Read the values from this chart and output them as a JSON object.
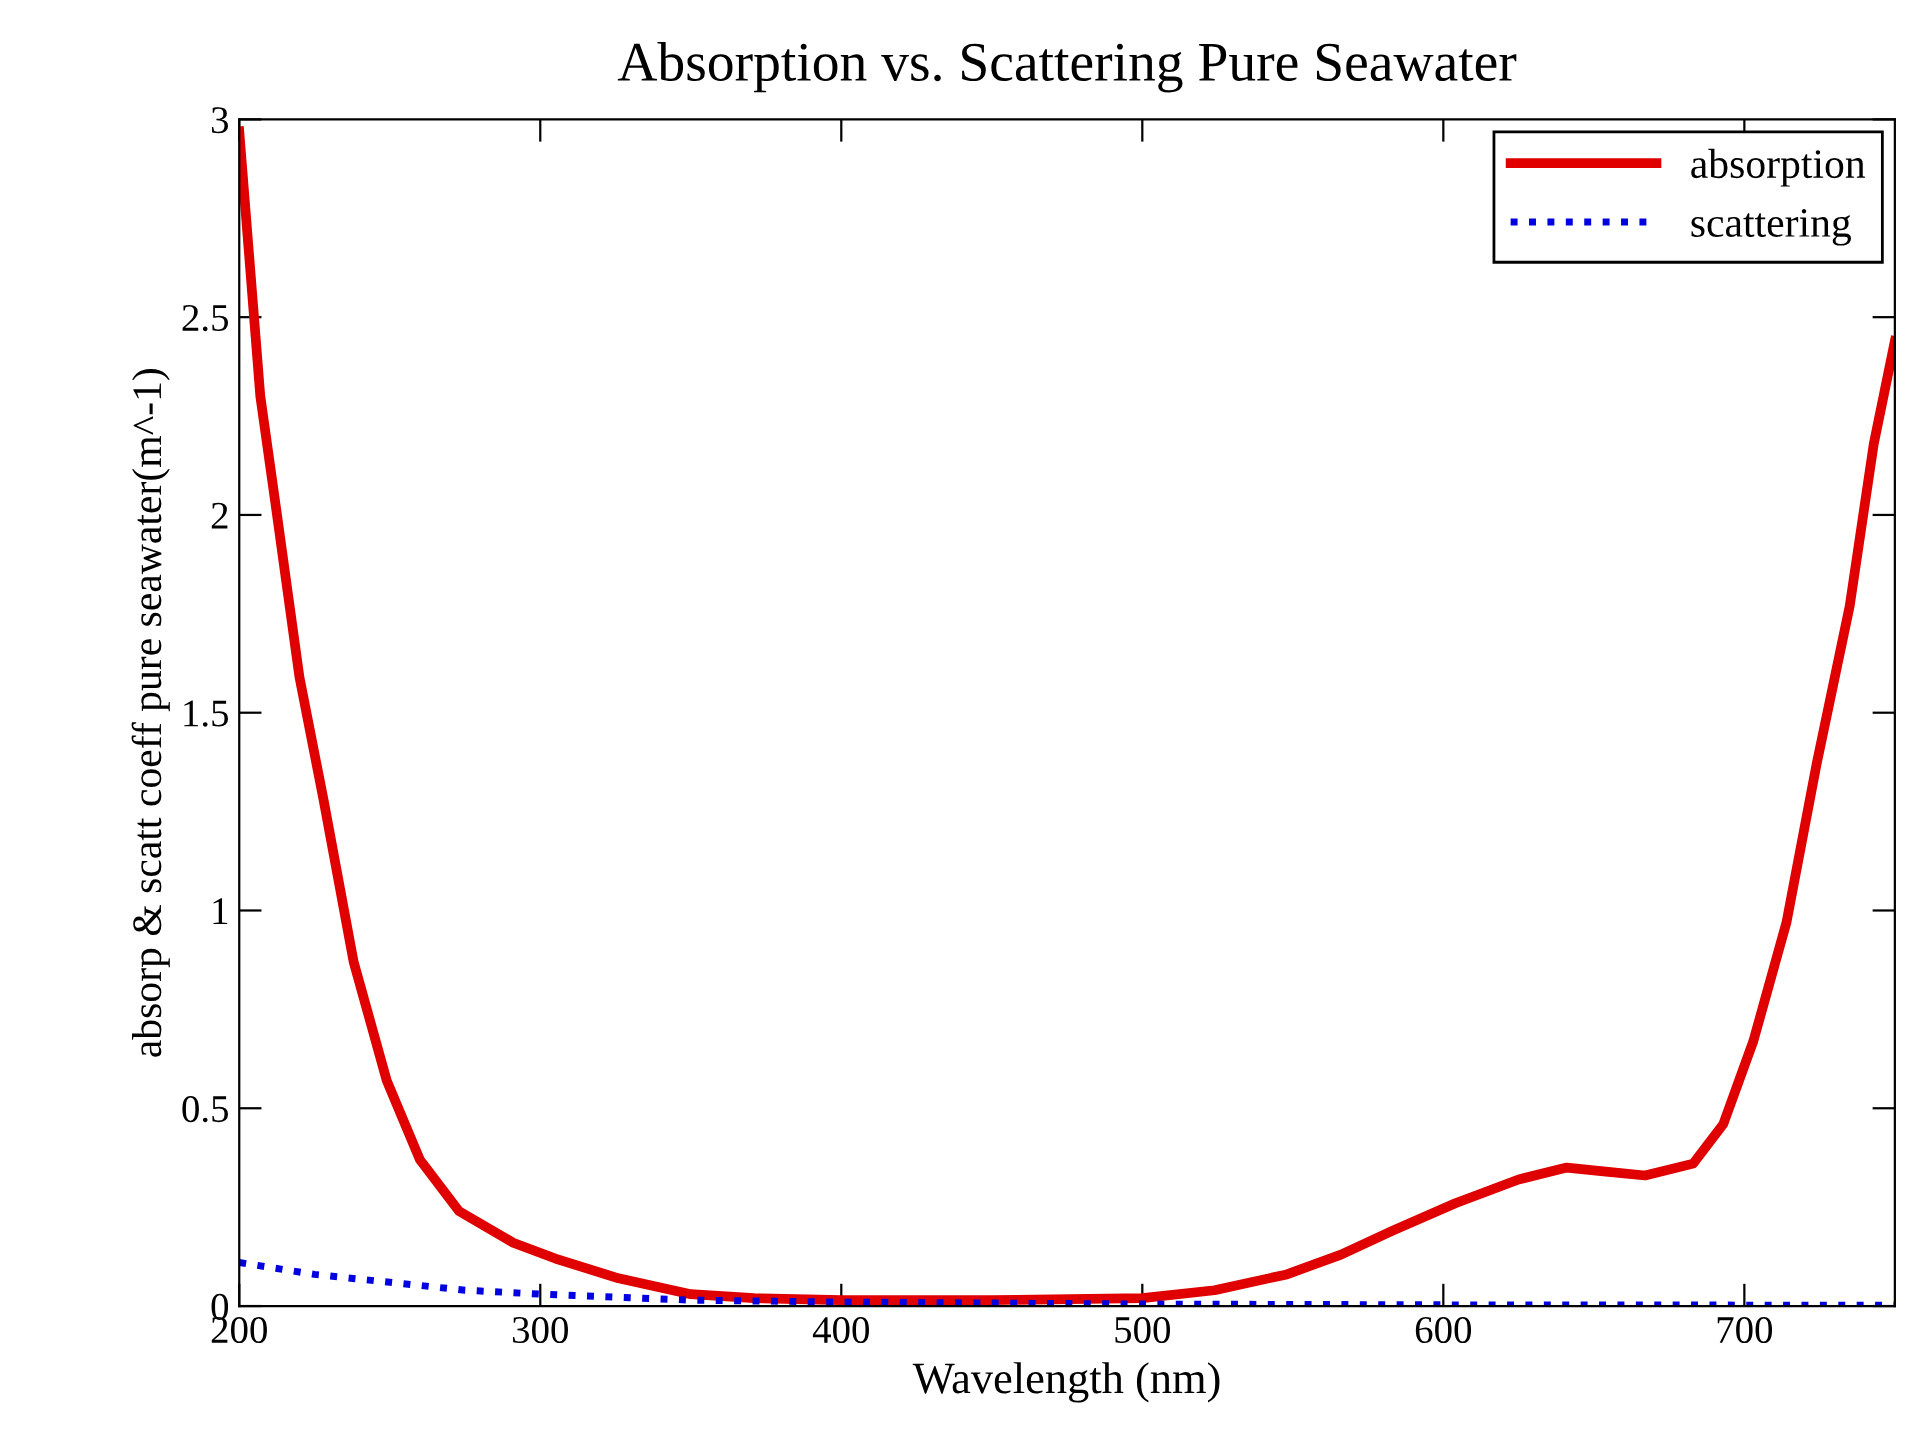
{
  "chart_data": {
    "type": "line",
    "title": "Absorption vs. Scattering Pure Seawater",
    "xlabel": "Wavelength (nm)",
    "ylabel": "absorp & scatt coeff pure seawater(m^-1)",
    "xlim": [
      200,
      750
    ],
    "xticks": [
      200,
      300,
      400,
      500,
      600,
      700
    ],
    "ylim": [
      0,
      3
    ],
    "yticks": [
      0,
      0.5,
      1,
      1.5,
      2,
      2.5,
      3
    ],
    "grid": false,
    "legend": "top right",
    "series": [
      {
        "name": "absorption",
        "color": "#e00000",
        "line_style": "solid",
        "x": [
          200,
          207,
          212,
          220,
          228,
          238,
          249,
          260,
          273,
          291,
          305,
          326,
          350,
          371,
          400,
          450,
          500,
          524,
          548,
          566,
          583,
          604,
          625,
          641,
          654,
          667,
          683,
          693,
          703,
          714,
          724,
          735,
          743,
          750
        ],
        "values": [
          2.97,
          2.3,
          2.03,
          1.59,
          1.28,
          0.87,
          0.57,
          0.37,
          0.24,
          0.16,
          0.12,
          0.07,
          0.03,
          0.02,
          0.015,
          0.015,
          0.02,
          0.04,
          0.08,
          0.13,
          0.19,
          0.26,
          0.32,
          0.35,
          0.34,
          0.33,
          0.36,
          0.46,
          0.67,
          0.97,
          1.37,
          1.77,
          2.18,
          2.44
        ]
      },
      {
        "name": "scattering",
        "color": "#0000e0",
        "line_style": "dotted",
        "x": [
          200,
          225,
          250,
          275,
          300,
          350,
          400,
          500,
          600,
          750
        ],
        "values": [
          0.11,
          0.08,
          0.06,
          0.04,
          0.03,
          0.015,
          0.01,
          0.005,
          0.003,
          0.002
        ]
      }
    ]
  }
}
